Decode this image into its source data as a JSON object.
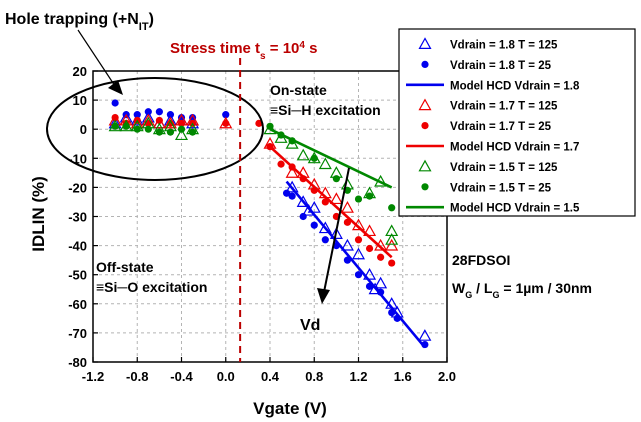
{
  "chart_data": {
    "type": "scatter",
    "title": "",
    "xlabel": "Vgate (V)",
    "ylabel": "IDLIN (%)",
    "xlim": [
      -1.2,
      2.0
    ],
    "ylim": [
      -80,
      20
    ],
    "xticks": [
      "-1.2",
      "-0.8",
      "-0.4",
      "0.0",
      "0.4",
      "0.8",
      "1.2",
      "1.6",
      "2.0"
    ],
    "yticks": [
      "20",
      "10",
      "0",
      "-10",
      "-20",
      "-30",
      "-40",
      "-50",
      "-60",
      "-70",
      "-80"
    ],
    "xtick_values": [
      -1.2,
      -0.8,
      -0.4,
      0.0,
      0.4,
      0.8,
      1.2,
      1.6,
      2.0
    ],
    "ytick_values": [
      20,
      10,
      0,
      -10,
      -20,
      -30,
      -40,
      -50,
      -60,
      -70,
      -80
    ],
    "grid": true,
    "legend_position": "top-right",
    "colors": {
      "blue": "#0000ee",
      "red": "#ee0000",
      "green": "#008800",
      "stress_line": "#bb0000"
    },
    "series": [
      {
        "name": "Vdrain = 1.8 T = 125",
        "kind": "markers",
        "marker": "triangle",
        "color": "blue",
        "points": [
          [
            -1.0,
            2
          ],
          [
            -0.9,
            4
          ],
          [
            -0.8,
            3
          ],
          [
            -0.7,
            4
          ],
          [
            -0.6,
            2
          ],
          [
            -0.5,
            3
          ],
          [
            -0.4,
            3
          ],
          [
            -0.3,
            2
          ],
          [
            0.6,
            -20
          ],
          [
            0.7,
            -25
          ],
          [
            0.75,
            -28
          ],
          [
            0.8,
            -27
          ],
          [
            0.9,
            -34
          ],
          [
            1.0,
            -36
          ],
          [
            1.1,
            -40
          ],
          [
            1.2,
            -43
          ],
          [
            1.3,
            -50
          ],
          [
            1.35,
            -55
          ],
          [
            1.4,
            -53
          ],
          [
            1.5,
            -60
          ],
          [
            1.55,
            -63
          ],
          [
            1.8,
            -71
          ]
        ]
      },
      {
        "name": "Vdrain = 1.8 T = 25",
        "kind": "markers",
        "marker": "circle",
        "color": "blue",
        "points": [
          [
            -1.0,
            9
          ],
          [
            -0.9,
            5
          ],
          [
            -0.8,
            5
          ],
          [
            -0.7,
            6
          ],
          [
            -0.6,
            6
          ],
          [
            -0.5,
            5
          ],
          [
            -0.4,
            4
          ],
          [
            -0.3,
            4
          ],
          [
            0.0,
            5
          ],
          [
            0.55,
            -22
          ],
          [
            0.6,
            -23
          ],
          [
            0.7,
            -30
          ],
          [
            0.8,
            -33
          ],
          [
            0.9,
            -38
          ],
          [
            1.0,
            -40
          ],
          [
            1.1,
            -45
          ],
          [
            1.2,
            -50
          ],
          [
            1.3,
            -54
          ],
          [
            1.4,
            -56
          ],
          [
            1.5,
            -63
          ],
          [
            1.55,
            -65
          ],
          [
            1.8,
            -74
          ]
        ]
      },
      {
        "name": "Model HCD Vdrain = 1.8",
        "kind": "line",
        "color": "blue",
        "points": [
          [
            0.55,
            -18
          ],
          [
            1.8,
            -75
          ]
        ]
      },
      {
        "name": "Vdrain = 1.7 T = 125",
        "kind": "markers",
        "marker": "triangle",
        "color": "red",
        "points": [
          [
            -1.0,
            3
          ],
          [
            -0.9,
            3
          ],
          [
            -0.8,
            2
          ],
          [
            -0.7,
            3
          ],
          [
            -0.6,
            2
          ],
          [
            -0.5,
            2
          ],
          [
            -0.4,
            3
          ],
          [
            -0.3,
            3
          ],
          [
            0.0,
            2
          ],
          [
            0.4,
            -5
          ],
          [
            0.6,
            -15
          ],
          [
            0.7,
            -15
          ],
          [
            0.8,
            -19
          ],
          [
            0.9,
            -22
          ],
          [
            1.0,
            -24
          ],
          [
            1.1,
            -27
          ],
          [
            1.2,
            -33
          ],
          [
            1.3,
            -35
          ],
          [
            1.4,
            -40
          ],
          [
            1.5,
            -40
          ]
        ]
      },
      {
        "name": "Vdrain = 1.7 T = 25",
        "kind": "markers",
        "marker": "circle",
        "color": "red",
        "points": [
          [
            -1.0,
            4
          ],
          [
            -0.9,
            2
          ],
          [
            -0.8,
            3
          ],
          [
            -0.7,
            2
          ],
          [
            -0.6,
            3
          ],
          [
            -0.5,
            2
          ],
          [
            -0.4,
            2
          ],
          [
            -0.3,
            2
          ],
          [
            0.0,
            2
          ],
          [
            0.3,
            2
          ],
          [
            0.4,
            -6
          ],
          [
            0.5,
            -12
          ],
          [
            0.6,
            -13
          ],
          [
            0.7,
            -17
          ],
          [
            0.8,
            -21
          ],
          [
            0.9,
            -25
          ],
          [
            1.0,
            -30
          ],
          [
            1.1,
            -32
          ],
          [
            1.2,
            -38
          ],
          [
            1.3,
            -41
          ],
          [
            1.4,
            -44
          ],
          [
            1.5,
            -46
          ]
        ]
      },
      {
        "name": "Model HCD Vdrain = 1.7",
        "kind": "line",
        "color": "red",
        "points": [
          [
            0.4,
            -6
          ],
          [
            1.5,
            -44
          ]
        ]
      },
      {
        "name": "Vdrain = 1.5 T = 125",
        "kind": "markers",
        "marker": "triangle",
        "color": "green",
        "points": [
          [
            -1.0,
            1
          ],
          [
            -0.9,
            1
          ],
          [
            -0.8,
            1
          ],
          [
            -0.7,
            2
          ],
          [
            -0.6,
            0
          ],
          [
            -0.5,
            1
          ],
          [
            -0.4,
            -2
          ],
          [
            -0.3,
            0
          ],
          [
            0.4,
            0
          ],
          [
            0.5,
            -3
          ],
          [
            0.6,
            -5
          ],
          [
            0.7,
            -9
          ],
          [
            0.8,
            -10
          ],
          [
            0.9,
            -12
          ],
          [
            1.0,
            -15
          ],
          [
            1.1,
            -19
          ],
          [
            1.3,
            -22
          ],
          [
            1.4,
            -18
          ],
          [
            1.5,
            -35
          ],
          [
            1.5,
            -38
          ]
        ]
      },
      {
        "name": "Vdrain = 1.5 T = 25",
        "kind": "markers",
        "marker": "circle",
        "color": "green",
        "points": [
          [
            -1.0,
            1
          ],
          [
            -0.9,
            1
          ],
          [
            -0.8,
            0
          ],
          [
            -0.7,
            0
          ],
          [
            -0.6,
            -1
          ],
          [
            -0.5,
            -1
          ],
          [
            -0.4,
            0
          ],
          [
            -0.3,
            -1
          ],
          [
            0.4,
            1
          ],
          [
            0.5,
            -2
          ],
          [
            0.6,
            -4
          ],
          [
            0.8,
            -10
          ],
          [
            1.0,
            -17
          ],
          [
            1.1,
            -21
          ],
          [
            1.2,
            -24
          ],
          [
            1.3,
            -23
          ],
          [
            1.5,
            -27
          ]
        ]
      },
      {
        "name": "Model HCD Vdrain = 1.5",
        "kind": "line",
        "color": "green",
        "points": [
          [
            0.4,
            0
          ],
          [
            1.5,
            -20
          ]
        ]
      }
    ],
    "annotations": {
      "hole_trapping_prefix": "Hole trapping (+N",
      "hole_trapping_sub": "IT",
      "hole_trapping_suffix": ")",
      "stress_prefix": "Stress time t",
      "stress_sub": "s",
      "stress_mid": " = 10",
      "stress_sup": "4",
      "stress_suffix": " s",
      "stress_x": 0.13,
      "on_state_1": "On-state",
      "on_state_2": "≡Si─H excitation",
      "off_state_1": "Off-state",
      "off_state_2": "≡Si─O excitation",
      "vd": "Vd",
      "tech": "28FDSOI",
      "dims_w": "W",
      "dims_g1": "G",
      "dims_sep": " / L",
      "dims_g2": "G",
      "dims_val": " = 1µm / 30nm"
    }
  }
}
